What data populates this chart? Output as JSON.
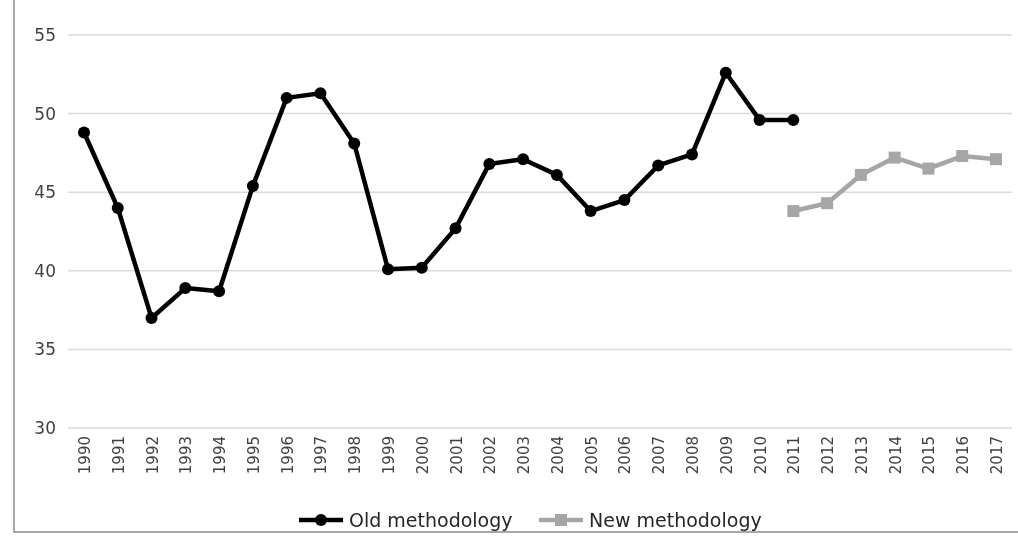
{
  "chart_data": {
    "type": "line",
    "categories": [
      "1990",
      "1991",
      "1992",
      "1993",
      "1994",
      "1995",
      "1996",
      "1997",
      "1998",
      "1999",
      "2000",
      "2001",
      "2002",
      "2003",
      "2004",
      "2005",
      "2006",
      "2007",
      "2008",
      "2009",
      "2010",
      "2011",
      "2012",
      "2013",
      "2014",
      "2015",
      "2016",
      "2017"
    ],
    "series": [
      {
        "name": "Old methodology",
        "color": "#000000",
        "marker": "circle",
        "values": [
          48.8,
          44.0,
          37.0,
          38.9,
          38.7,
          45.4,
          51.0,
          51.3,
          48.1,
          40.1,
          40.2,
          42.7,
          46.8,
          47.1,
          46.1,
          43.8,
          44.5,
          46.7,
          47.4,
          52.6,
          49.6,
          49.6,
          null,
          null,
          null,
          null,
          null,
          null
        ]
      },
      {
        "name": "New methodology",
        "color": "#a6a6a6",
        "marker": "square",
        "values": [
          null,
          null,
          null,
          null,
          null,
          null,
          null,
          null,
          null,
          null,
          null,
          null,
          null,
          null,
          null,
          null,
          null,
          null,
          null,
          null,
          null,
          43.8,
          44.3,
          46.1,
          47.2,
          46.5,
          47.3,
          47.1
        ]
      }
    ],
    "ylim": [
      30,
      55
    ],
    "yticks": [
      30,
      35,
      40,
      45,
      50,
      55
    ],
    "grid": "y",
    "legend": "bottom"
  }
}
